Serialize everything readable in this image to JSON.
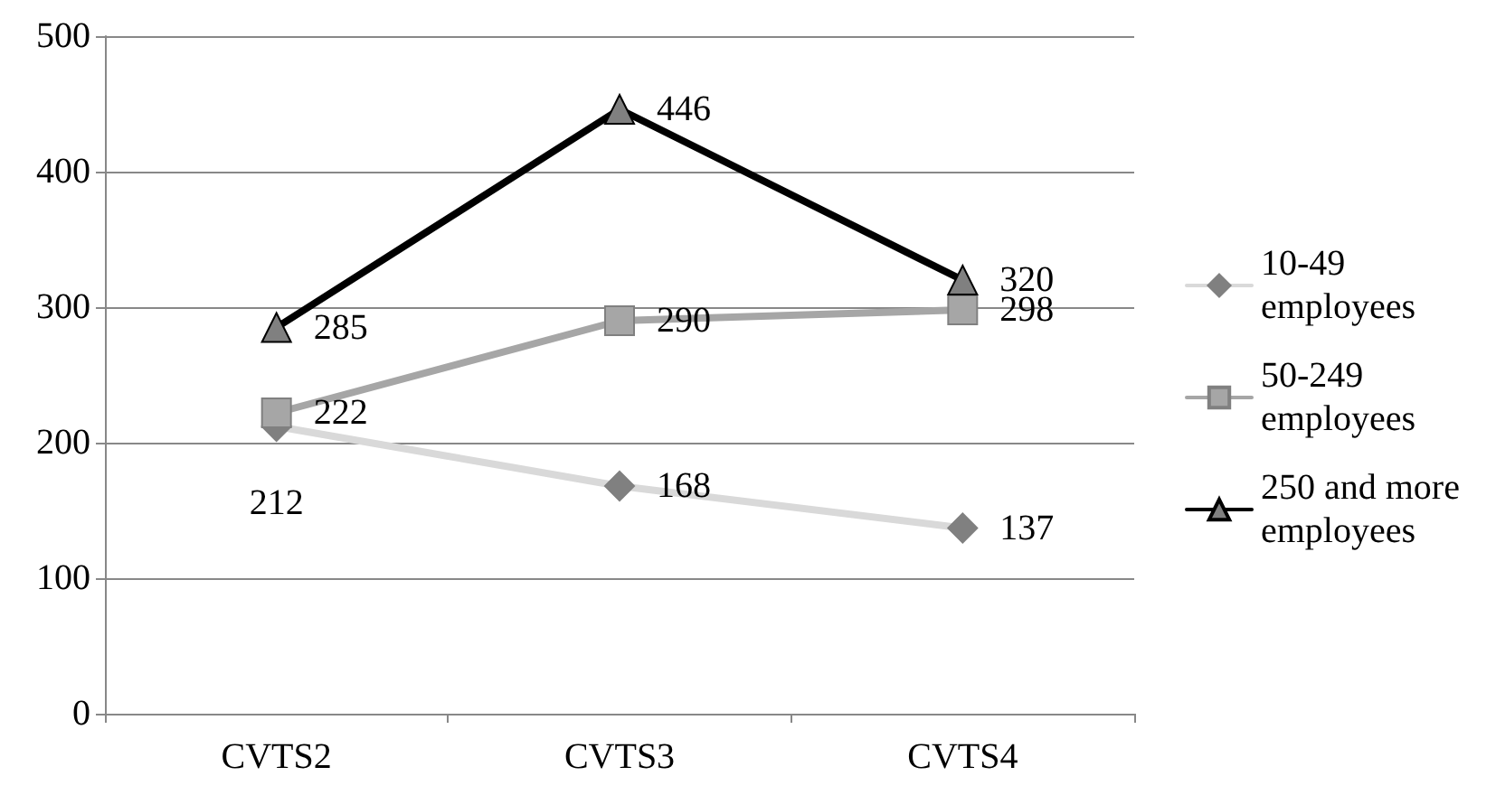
{
  "chart_data": {
    "type": "line",
    "categories": [
      "CVTS2",
      "CVTS3",
      "CVTS4"
    ],
    "series": [
      {
        "name": "10-49 employees",
        "color": "#d9d9d9",
        "marker": "diamond",
        "values": [
          212,
          168,
          137
        ]
      },
      {
        "name": "50-249 employees",
        "color": "#a6a6a6",
        "marker": "square",
        "values": [
          222,
          290,
          298
        ]
      },
      {
        "name": "250 and more employees",
        "color": "#000000",
        "marker": "triangle",
        "values": [
          285,
          446,
          320
        ]
      }
    ],
    "ylim": [
      0,
      500
    ],
    "yticks": [
      0,
      100,
      200,
      300,
      400,
      500
    ],
    "grid": "y",
    "legend": "right",
    "data_labels": true,
    "line_style": "solid"
  }
}
